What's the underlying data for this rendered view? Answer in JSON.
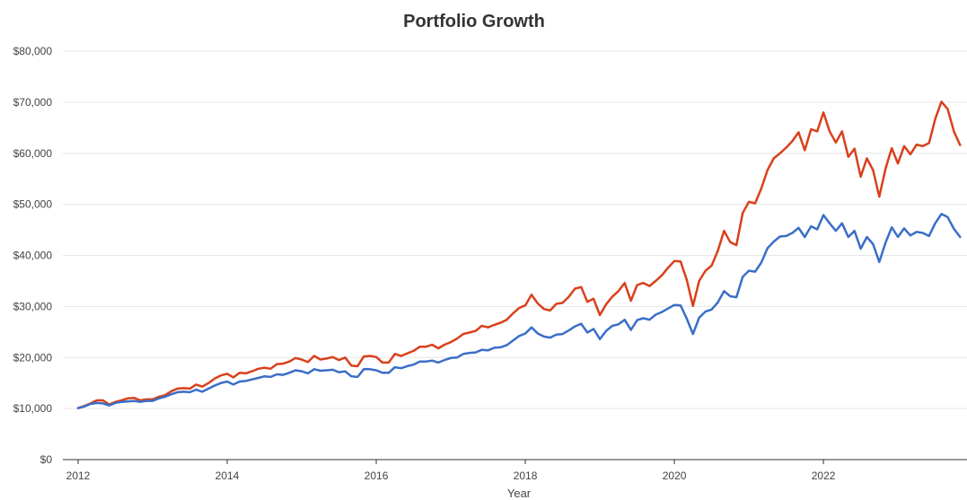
{
  "chart_data": {
    "type": "line",
    "title": "Portfolio Growth",
    "xlabel": "Year",
    "ylabel": "",
    "x_start": 2012.0,
    "x_step": 0.08333333,
    "xlim": [
      2012,
      2023.83
    ],
    "ylim": [
      0,
      80000
    ],
    "grid": true,
    "legend": "none",
    "x_ticks": [
      2012,
      2014,
      2016,
      2018,
      2020,
      2022
    ],
    "x_tick_labels": [
      "2012",
      "2014",
      "2016",
      "2018",
      "2020",
      "2022"
    ],
    "y_ticks": [
      0,
      10000,
      20000,
      30000,
      40000,
      50000,
      60000,
      70000,
      80000
    ],
    "y_tick_labels": [
      "$0",
      "$10,000",
      "$20,000",
      "$30,000",
      "$40,000",
      "$50,000",
      "$60,000",
      "$70,000",
      "$80,000"
    ],
    "series": [
      {
        "color": "#d9401c",
        "values": [
          10100,
          10500,
          11000,
          11600,
          11600,
          10800,
          11300,
          11600,
          12000,
          12100,
          11600,
          11800,
          11800,
          12300,
          12600,
          13400,
          13900,
          14000,
          13900,
          14700,
          14300,
          15000,
          15900,
          16500,
          16800,
          16100,
          17000,
          16900,
          17300,
          17800,
          18000,
          17800,
          18700,
          18800,
          19200,
          19900,
          19600,
          19100,
          20300,
          19600,
          19800,
          20100,
          19500,
          20000,
          18400,
          18300,
          20200,
          20300,
          20100,
          19000,
          19000,
          20700,
          20300,
          20800,
          21300,
          22100,
          22100,
          22500,
          21800,
          22500,
          23000,
          23700,
          24600,
          24900,
          25200,
          26200,
          25900,
          26400,
          26800,
          27400,
          28600,
          29700,
          30200,
          32300,
          30600,
          29500,
          29200,
          30500,
          30700,
          31900,
          33500,
          33800,
          30900,
          31500,
          28300,
          30400,
          31900,
          33000,
          34600,
          31100,
          34200,
          34600,
          34000,
          35000,
          36100,
          37600,
          38900,
          38800,
          35200,
          30100,
          35000,
          37000,
          38000,
          40900,
          44800,
          42600,
          42000,
          48300,
          50500,
          50200,
          53100,
          56700,
          59000,
          60000,
          61100,
          62400,
          64100,
          60600,
          64700,
          64300,
          68000,
          64300,
          62100,
          64300,
          59300,
          60900,
          55400,
          59000,
          56700,
          51500,
          57000,
          61000,
          58000,
          61400,
          59800,
          61700,
          61400,
          62000,
          66700,
          70100,
          68700,
          64300,
          61600
        ]
      },
      {
        "color": "#3a6ec8",
        "values": [
          10100,
          10400,
          10900,
          11100,
          11000,
          10600,
          11100,
          11300,
          11400,
          11500,
          11300,
          11500,
          11500,
          12000,
          12300,
          12800,
          13200,
          13300,
          13200,
          13700,
          13300,
          13900,
          14500,
          15000,
          15300,
          14700,
          15300,
          15400,
          15700,
          16000,
          16300,
          16200,
          16700,
          16600,
          17000,
          17500,
          17300,
          16900,
          17700,
          17400,
          17500,
          17600,
          17100,
          17300,
          16300,
          16200,
          17700,
          17700,
          17500,
          17000,
          17000,
          18100,
          17900,
          18300,
          18600,
          19200,
          19200,
          19400,
          19000,
          19500,
          19900,
          20000,
          20700,
          20900,
          21000,
          21500,
          21400,
          21900,
          22000,
          22400,
          23300,
          24200,
          24700,
          25900,
          24700,
          24100,
          23900,
          24500,
          24600,
          25300,
          26100,
          26600,
          24900,
          25600,
          23600,
          25200,
          26200,
          26500,
          27400,
          25400,
          27300,
          27700,
          27400,
          28400,
          28900,
          29600,
          30300,
          30200,
          27600,
          24600,
          27800,
          29000,
          29400,
          30800,
          33000,
          32000,
          31800,
          35800,
          37000,
          36800,
          38600,
          41400,
          42700,
          43700,
          43800,
          44400,
          45400,
          43600,
          45700,
          45100,
          47900,
          46300,
          44800,
          46300,
          43600,
          44800,
          41300,
          43600,
          42200,
          38700,
          42500,
          45500,
          43600,
          45300,
          43900,
          44600,
          44400,
          43800,
          46300,
          48100,
          47500,
          45200,
          43600
        ]
      }
    ]
  }
}
